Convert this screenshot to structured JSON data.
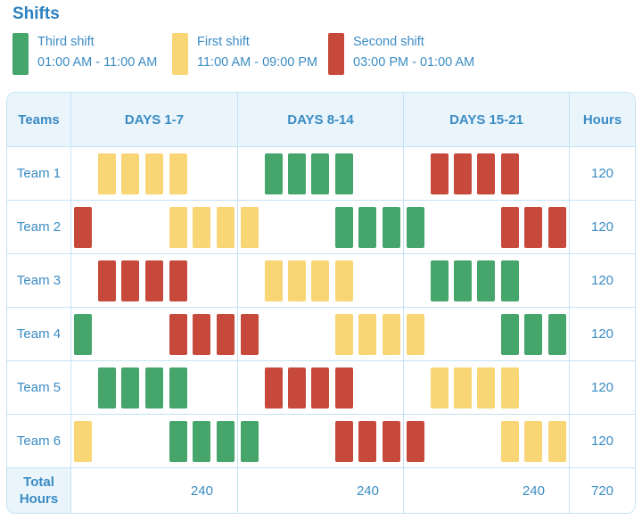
{
  "title": "Shifts",
  "colors": {
    "third": "#45a56b",
    "first": "#f8d575",
    "second": "#c6493c",
    "text_blue": "#3b8cc4",
    "title_blue": "#2b80c0",
    "border": "#c5e3f5",
    "header_bg": "#e9f4fb"
  },
  "legend": {
    "items": [
      {
        "shift": "third",
        "label": "Third shift",
        "time": "01:00 AM - 11:00 AM"
      },
      {
        "shift": "first",
        "label": "First shift",
        "time": "11:00 AM - 09:00 PM"
      },
      {
        "shift": "second",
        "label": "Second shift",
        "time": "03:00 PM - 01:00 AM"
      }
    ]
  },
  "chart_data": {
    "type": "table",
    "title": "Shifts",
    "columns": [
      "Teams",
      "DAYS 1-7",
      "DAYS 8-14",
      "DAYS 15-21",
      "Hours"
    ],
    "shift_legend": {
      "third": {
        "label": "Third shift",
        "time": "01:00 AM - 11:00 AM",
        "color": "#45a56b"
      },
      "first": {
        "label": "First shift",
        "time": "11:00 AM - 09:00 PM",
        "color": "#f8d575"
      },
      "second": {
        "label": "Second shift",
        "time": "03:00 PM - 01:00 AM",
        "color": "#c6493c"
      }
    },
    "rows": [
      {
        "team": "Team 1",
        "hours": "120",
        "periods": [
          {
            "slots": [
              "",
              "first",
              "first",
              "first",
              "first",
              "",
              ""
            ]
          },
          {
            "slots": [
              "",
              "third",
              "third",
              "third",
              "third",
              "",
              ""
            ]
          },
          {
            "slots": [
              "",
              "second",
              "second",
              "second",
              "second",
              "",
              ""
            ]
          }
        ]
      },
      {
        "team": "Team 2",
        "hours": "120",
        "periods": [
          {
            "slots": [
              "second",
              "",
              "",
              "",
              "first",
              "first",
              "first"
            ]
          },
          {
            "slots": [
              "first",
              "",
              "",
              "",
              "third",
              "third",
              "third"
            ]
          },
          {
            "slots": [
              "third",
              "",
              "",
              "",
              "second",
              "second",
              "second"
            ]
          }
        ]
      },
      {
        "team": "Team 3",
        "hours": "120",
        "periods": [
          {
            "slots": [
              "",
              "second",
              "second",
              "second",
              "second",
              "",
              ""
            ]
          },
          {
            "slots": [
              "",
              "first",
              "first",
              "first",
              "first",
              "",
              ""
            ]
          },
          {
            "slots": [
              "",
              "third",
              "third",
              "third",
              "third",
              "",
              ""
            ]
          }
        ]
      },
      {
        "team": "Team 4",
        "hours": "120",
        "periods": [
          {
            "slots": [
              "third",
              "",
              "",
              "",
              "second",
              "second",
              "second"
            ]
          },
          {
            "slots": [
              "second",
              "",
              "",
              "",
              "first",
              "first",
              "first"
            ]
          },
          {
            "slots": [
              "first",
              "",
              "",
              "",
              "third",
              "third",
              "third"
            ]
          }
        ]
      },
      {
        "team": "Team 5",
        "hours": "120",
        "periods": [
          {
            "slots": [
              "",
              "third",
              "third",
              "third",
              "third",
              "",
              ""
            ]
          },
          {
            "slots": [
              "",
              "second",
              "second",
              "second",
              "second",
              "",
              ""
            ]
          },
          {
            "slots": [
              "",
              "first",
              "first",
              "first",
              "first",
              "",
              ""
            ]
          }
        ]
      },
      {
        "team": "Team 6",
        "hours": "120",
        "periods": [
          {
            "slots": [
              "first",
              "",
              "",
              "",
              "third",
              "third",
              "third"
            ]
          },
          {
            "slots": [
              "third",
              "",
              "",
              "",
              "second",
              "second",
              "second"
            ]
          },
          {
            "slots": [
              "second",
              "",
              "",
              "",
              "first",
              "first",
              "first"
            ]
          }
        ]
      }
    ],
    "total_row": {
      "label_line1": "Total",
      "label_line2": "Hours",
      "values": [
        "240",
        "240",
        "240"
      ],
      "grand_total": "720"
    }
  }
}
